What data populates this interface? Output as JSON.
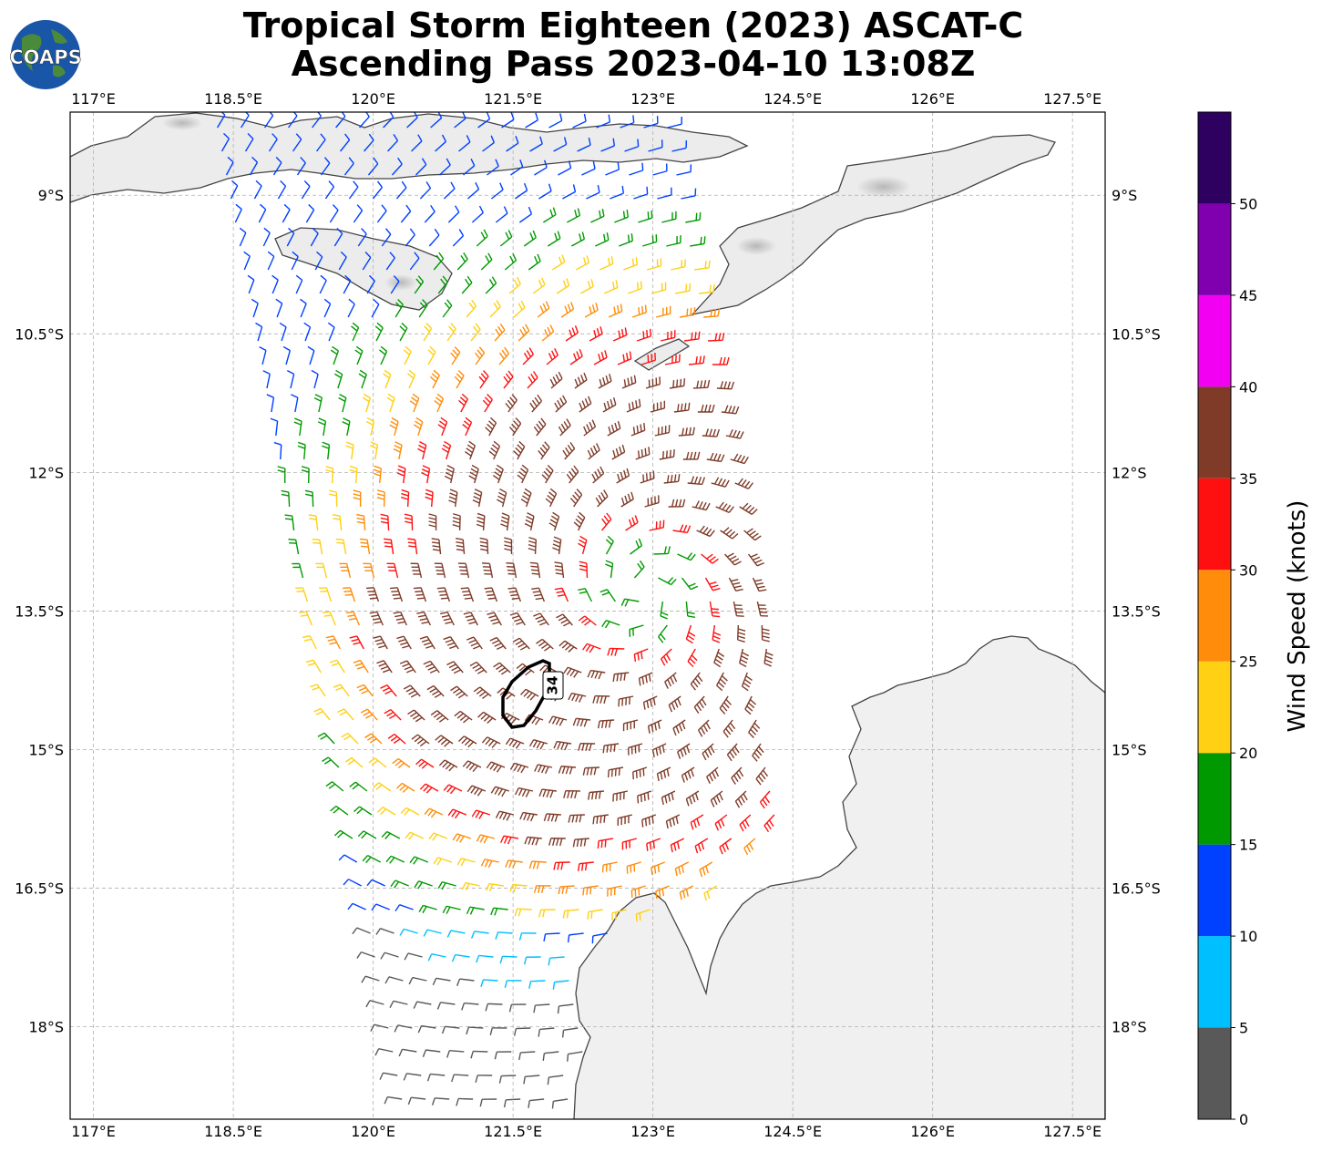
{
  "title": {
    "line1": "Tropical Storm Eighteen (2023) ASCAT-C",
    "line2": "Ascending Pass 2023-04-10 13:08Z"
  },
  "logo": {
    "text": "COAPS",
    "icon": "globe-icon"
  },
  "map": {
    "lon_range": [
      116.75,
      127.85
    ],
    "lat_range": [
      -19.0,
      -8.1
    ],
    "lon_ticks": [
      "117°E",
      "118.5°E",
      "120°E",
      "121.5°E",
      "123°E",
      "124.5°E",
      "126°E",
      "127.5°E"
    ],
    "lat_ticks": [
      "9°S",
      "10.5°S",
      "12°S",
      "13.5°S",
      "15°S",
      "16.5°S",
      "18°S"
    ],
    "gridlines": true,
    "land_color": "#efefef",
    "coast_color": "#444444",
    "storm_center": {
      "lon": 122.9,
      "lat": -13.3
    },
    "contour": {
      "label": "34",
      "color": "#000000"
    }
  },
  "colorbar": {
    "label": "Wind Speed (knots)",
    "ticks": [
      "0",
      "5",
      "10",
      "15",
      "20",
      "25",
      "30",
      "35",
      "40",
      "45",
      "50"
    ],
    "bins": [
      {
        "min": 0,
        "max": 5,
        "color": "#595959"
      },
      {
        "min": 5,
        "max": 10,
        "color": "#00bfff"
      },
      {
        "min": 10,
        "max": 15,
        "color": "#0040ff"
      },
      {
        "min": 15,
        "max": 20,
        "color": "#009a00"
      },
      {
        "min": 20,
        "max": 25,
        "color": "#ffd014"
      },
      {
        "min": 25,
        "max": 30,
        "color": "#ff8c0a"
      },
      {
        "min": 30,
        "max": 35,
        "color": "#ff1010"
      },
      {
        "min": 35,
        "max": 40,
        "color": "#7f3b28"
      },
      {
        "min": 40,
        "max": 45,
        "color": "#f200f2"
      },
      {
        "min": 45,
        "max": 50,
        "color": "#8000b0"
      },
      {
        "min": 50,
        "max": 55,
        "color": "#2e0060"
      }
    ]
  }
}
